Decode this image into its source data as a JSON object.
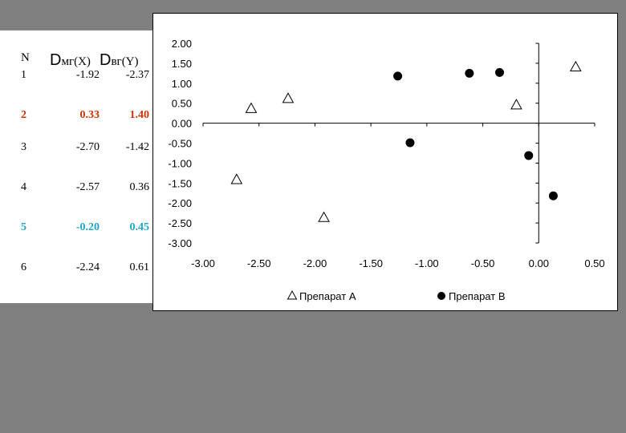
{
  "table": {
    "header": {
      "n": "N",
      "x_big": "D",
      "x_sub": "мг(X)",
      "y_big": "D",
      "y_sub": "вг(Y)"
    },
    "rows": [
      {
        "n": "1",
        "x": "-1.92",
        "y": "-2.37",
        "color": "#000000"
      },
      {
        "n": "2",
        "x": "0.33",
        "y": "1.40",
        "color": "#cc3300"
      },
      {
        "n": "3",
        "x": "-2.70",
        "y": "-1.42",
        "color": "#000000"
      },
      {
        "n": "4",
        "x": "-2.57",
        "y": "0.36",
        "color": "#000000"
      },
      {
        "n": "5",
        "x": "-0.20",
        "y": "0.45",
        "color": "#1fa6c6"
      },
      {
        "n": "6",
        "x": "-2.24",
        "y": "0.61",
        "color": "#000000"
      }
    ]
  },
  "chart_data": {
    "type": "scatter",
    "xlim": [
      -3.0,
      0.5
    ],
    "ylim": [
      -3.0,
      2.0
    ],
    "x_ticks": [
      "-3.00",
      "-2.50",
      "-2.00",
      "-1.50",
      "-1.00",
      "-0.50",
      "0.00",
      "0.50"
    ],
    "y_ticks": [
      "2.00",
      "1.50",
      "1.00",
      "0.50",
      "0.00",
      "-0.50",
      "-1.00",
      "-1.50",
      "-2.00",
      "-2.50",
      "-3.00"
    ],
    "grid": false,
    "legend_position": "bottom",
    "series": [
      {
        "name": "Препарат A",
        "marker": "triangle-open",
        "points": [
          {
            "x": -2.57,
            "y": 0.36
          },
          {
            "x": -2.24,
            "y": 0.61
          },
          {
            "x": -2.7,
            "y": -1.42
          },
          {
            "x": -1.92,
            "y": -2.37
          },
          {
            "x": -0.2,
            "y": 0.45
          },
          {
            "x": 0.33,
            "y": 1.4
          }
        ]
      },
      {
        "name": "Препарат B",
        "marker": "circle-filled",
        "points": [
          {
            "x": -1.26,
            "y": 1.18
          },
          {
            "x": -1.15,
            "y": -0.49
          },
          {
            "x": -0.62,
            "y": 1.25
          },
          {
            "x": -0.35,
            "y": 1.27
          },
          {
            "x": -0.09,
            "y": -0.81
          },
          {
            "x": 0.13,
            "y": -1.82
          }
        ]
      }
    ]
  }
}
